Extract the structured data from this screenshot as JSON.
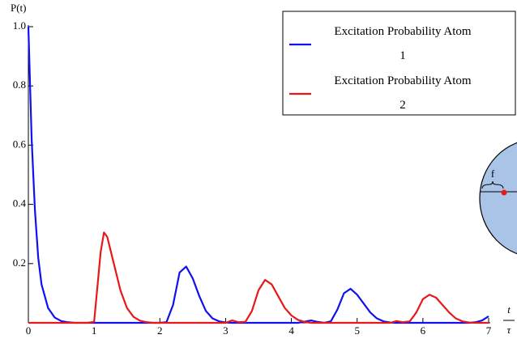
{
  "chart_data": {
    "type": "line",
    "ylabel": "P(t)",
    "xlabel": {
      "numerator": "t",
      "denominator": "τ"
    },
    "x": [
      0,
      0.05,
      0.1,
      0.15,
      0.2,
      0.3,
      0.4,
      0.5,
      0.6,
      0.7,
      0.8,
      0.9,
      1,
      1.1,
      1.15,
      1.2,
      1.3,
      1.4,
      1.5,
      1.6,
      1.7,
      1.8,
      1.9,
      2,
      2.1,
      2.2,
      2.3,
      2.4,
      2.5,
      2.6,
      2.7,
      2.8,
      2.9,
      3,
      3.1,
      3.2,
      3.3,
      3.4,
      3.5,
      3.6,
      3.7,
      3.8,
      3.9,
      4,
      4.1,
      4.2,
      4.3,
      4.4,
      4.5,
      4.6,
      4.7,
      4.8,
      4.9,
      5,
      5.1,
      5.2,
      5.3,
      5.4,
      5.5,
      5.6,
      5.7,
      5.8,
      5.9,
      6,
      6.1,
      6.2,
      6.3,
      6.4,
      6.5,
      6.6,
      6.7,
      6.8,
      6.9,
      7
    ],
    "series": [
      {
        "name": "Excitation Probability Atom 1",
        "color": "#1010f0",
        "values": [
          1,
          0.62,
          0.38,
          0.22,
          0.13,
          0.05,
          0.018,
          0.006,
          0.002,
          0,
          0,
          0,
          0,
          0,
          0,
          0,
          0,
          0,
          0,
          0,
          0,
          0,
          0,
          0,
          0.002,
          0.06,
          0.17,
          0.19,
          0.15,
          0.09,
          0.04,
          0.015,
          0.005,
          0.001,
          0,
          0,
          0,
          0,
          0,
          0,
          0,
          0,
          0,
          0,
          0,
          0.004,
          0.008,
          0.003,
          0,
          0.005,
          0.045,
          0.1,
          0.115,
          0.095,
          0.065,
          0.035,
          0.015,
          0.005,
          0.001,
          0,
          0,
          0,
          0,
          0,
          0,
          0,
          0,
          0,
          0,
          0,
          0,
          0.002,
          0.008,
          0.022
        ]
      },
      {
        "name": "Excitation Probability Atom 2",
        "color": "#e81818",
        "values": [
          0,
          0,
          0,
          0,
          0,
          0,
          0,
          0,
          0,
          0,
          0,
          0,
          0.003,
          0.24,
          0.305,
          0.29,
          0.2,
          0.11,
          0.05,
          0.02,
          0.007,
          0.002,
          0,
          0,
          0,
          0,
          0,
          0,
          0,
          0,
          0,
          0,
          0,
          0,
          0.008,
          0.002,
          0.003,
          0.04,
          0.11,
          0.145,
          0.13,
          0.09,
          0.05,
          0.025,
          0.01,
          0.003,
          0,
          0,
          0,
          0,
          0,
          0,
          0,
          0,
          0,
          0,
          0,
          0,
          0,
          0.006,
          0.002,
          0.005,
          0.035,
          0.08,
          0.095,
          0.085,
          0.06,
          0.035,
          0.015,
          0.005,
          0.001,
          0,
          0,
          0
        ]
      }
    ],
    "xlim": [
      0,
      7
    ],
    "ylim": [
      0,
      1
    ],
    "xticks": [
      0,
      1,
      2,
      3,
      4,
      5,
      6,
      7
    ],
    "yticks": [
      0.2,
      0.4,
      0.6,
      0.8,
      {
        "value": 1,
        "label": "1.0"
      }
    ],
    "legend": "top-right",
    "inset_label": "f"
  }
}
